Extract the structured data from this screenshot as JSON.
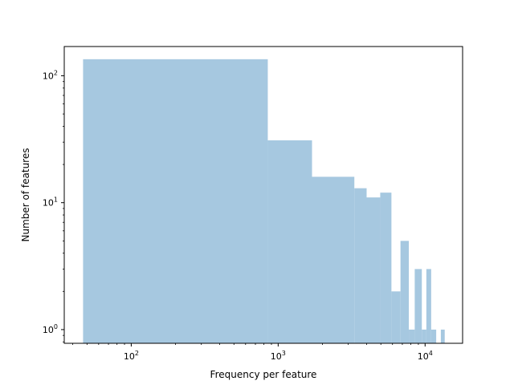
{
  "chart_data": {
    "type": "bar",
    "subtype": "histogram",
    "xlabel": "Frequency per feature",
    "ylabel": "Number of features",
    "xscale": "log",
    "yscale": "log",
    "xlim": [
      35,
      18000
    ],
    "ylim": [
      0.78,
      170
    ],
    "grid": false,
    "bar_color": "#a6c8e0",
    "x_ticks": [
      {
        "value": 100,
        "base": "10",
        "exp": "2"
      },
      {
        "value": 1000,
        "base": "10",
        "exp": "3"
      },
      {
        "value": 10000,
        "base": "10",
        "exp": "4"
      }
    ],
    "y_ticks": [
      {
        "value": 1,
        "base": "10",
        "exp": "0"
      },
      {
        "value": 10,
        "base": "10",
        "exp": "1"
      },
      {
        "value": 100,
        "base": "10",
        "exp": "2"
      }
    ],
    "bins": [
      {
        "x0": 47,
        "x1": 850,
        "count": 135
      },
      {
        "x0": 850,
        "x1": 1700,
        "count": 31
      },
      {
        "x0": 1700,
        "x1": 3300,
        "count": 16
      },
      {
        "x0": 3300,
        "x1": 4000,
        "count": 13
      },
      {
        "x0": 4000,
        "x1": 4950,
        "count": 11
      },
      {
        "x0": 4950,
        "x1": 5900,
        "count": 12
      },
      {
        "x0": 5900,
        "x1": 6800,
        "count": 2
      },
      {
        "x0": 6800,
        "x1": 7750,
        "count": 5
      },
      {
        "x0": 7750,
        "x1": 8500,
        "count": 1
      },
      {
        "x0": 8500,
        "x1": 9500,
        "count": 3
      },
      {
        "x0": 9500,
        "x1": 10200,
        "count": 1
      },
      {
        "x0": 10200,
        "x1": 11000,
        "count": 3
      },
      {
        "x0": 11000,
        "x1": 11900,
        "count": 1
      },
      {
        "x0": 12800,
        "x1": 13600,
        "count": 1
      }
    ]
  }
}
